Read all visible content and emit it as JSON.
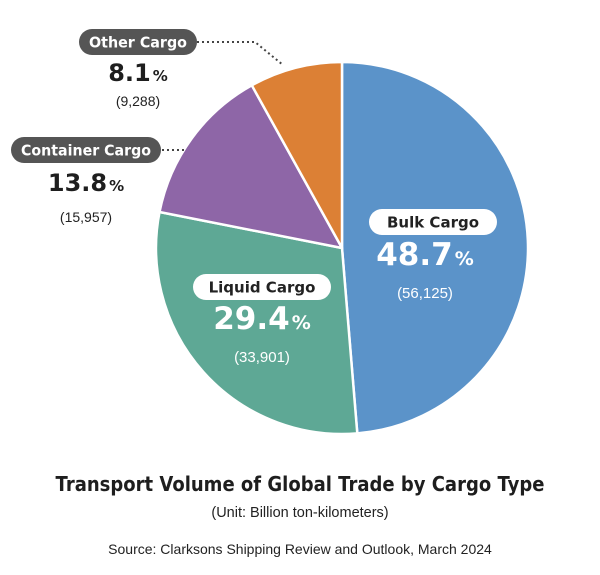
{
  "chart_data": {
    "type": "pie",
    "title": "Transport Volume of Global Trade by Cargo Type",
    "subtitle": "(Unit: Billion ton-kilometers)",
    "source": "Source: Clarksons Shipping Review and Outlook, March 2024",
    "unit_symbol": "%",
    "slices": [
      {
        "label": "Bulk Cargo",
        "value": 56125,
        "value_text": "(56,125)",
        "percent": 48.7,
        "percent_text": "48.7",
        "color": "#5b93c9",
        "label_placement": "inside"
      },
      {
        "label": "Liquid Cargo",
        "value": 33901,
        "value_text": "(33,901)",
        "percent": 29.4,
        "percent_text": "29.4",
        "color": "#5ea895",
        "label_placement": "inside"
      },
      {
        "label": "Container Cargo",
        "value": 15957,
        "value_text": "(15,957)",
        "percent": 13.8,
        "percent_text": "13.8",
        "color": "#8e66a7",
        "label_placement": "outside-left"
      },
      {
        "label": "Other Cargo",
        "value": 9288,
        "value_text": "(9,288)",
        "percent": 8.1,
        "percent_text": "8.1",
        "color": "#dc8035",
        "label_placement": "outside-left"
      }
    ]
  }
}
